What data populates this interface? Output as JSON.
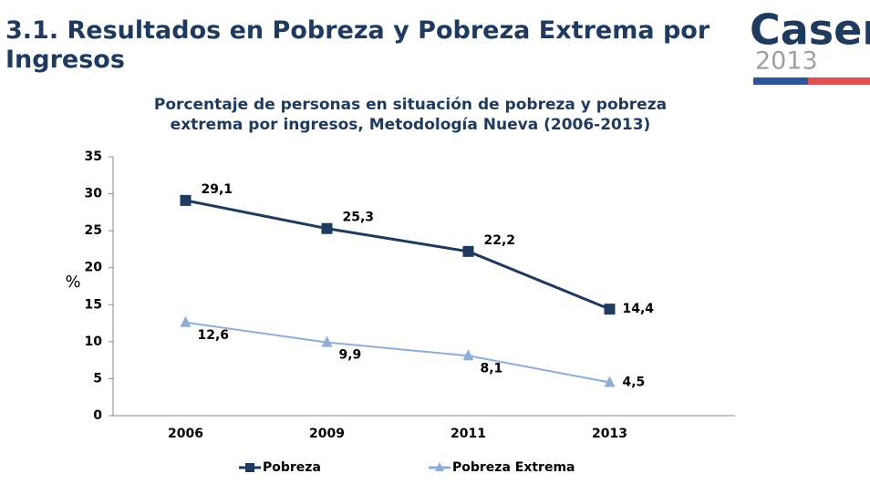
{
  "header": {
    "title": "3.1. Resultados en Pobreza y Pobreza Extrema por Ingresos",
    "logo": "Casen",
    "logo_year": "2013"
  },
  "chart_data": {
    "type": "line",
    "title": "Porcentaje de personas en situación de pobreza y pobreza extrema por ingresos, Metodología Nueva (2006-2013)",
    "y_label": "%",
    "categories": [
      "2006",
      "2009",
      "2011",
      "2013"
    ],
    "series": [
      {
        "name": "Pobreza",
        "color": "#1f3a5f",
        "marker": "square",
        "values": [
          29.1,
          25.3,
          22.2,
          14.4
        ],
        "value_labels": [
          "29,1",
          "25,3",
          "22,2",
          "14,4"
        ]
      },
      {
        "name": "Pobreza Extrema",
        "color": "#8eaed6",
        "marker": "triangle",
        "values": [
          12.6,
          9.9,
          8.1,
          4.5
        ],
        "value_labels": [
          "12,6",
          "9,9",
          "8,1",
          "4,5"
        ]
      }
    ],
    "ylim": [
      0,
      35
    ],
    "yticks": [
      0,
      5,
      10,
      15,
      20,
      25,
      30,
      35
    ],
    "grid": false,
    "legend": "bottom"
  }
}
